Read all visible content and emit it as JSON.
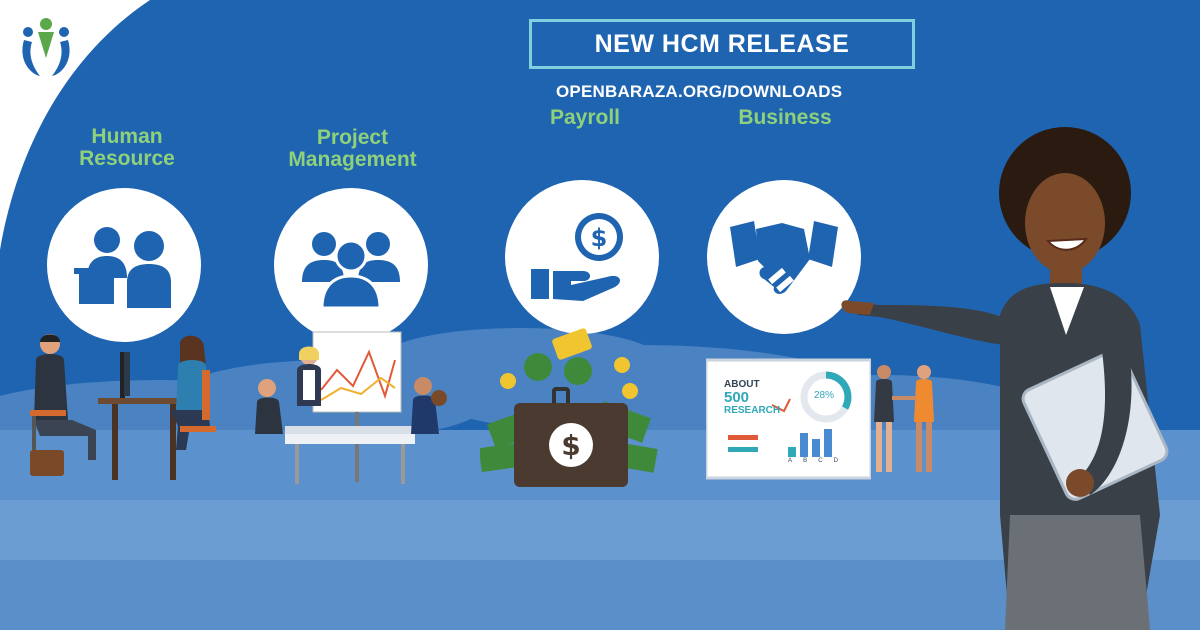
{
  "banner": {
    "title": "NEW HCM RELEASE"
  },
  "url": "OPENBARAZA.ORG/DOWNLOADS",
  "categories": [
    {
      "line1": "Human",
      "line2": "Resource",
      "icon": "office-people-icon"
    },
    {
      "line1": "Project",
      "line2": "Management",
      "icon": "team-group-icon"
    },
    {
      "line1": "Payroll",
      "icon": "hand-coin-icon"
    },
    {
      "line1": "Business",
      "icon": "handshake-icon"
    }
  ],
  "board": {
    "about": "ABOUT",
    "number": "500",
    "research": "RESEARCH",
    "percent": "28%",
    "bar_labels": [
      "A",
      "B",
      "C",
      "D"
    ]
  },
  "money_symbol": "$",
  "colors": {
    "background": "#1f64b0",
    "accent_green": "#8fd07c",
    "banner_border": "#7fd0de",
    "cloud": "#5b91cc"
  }
}
